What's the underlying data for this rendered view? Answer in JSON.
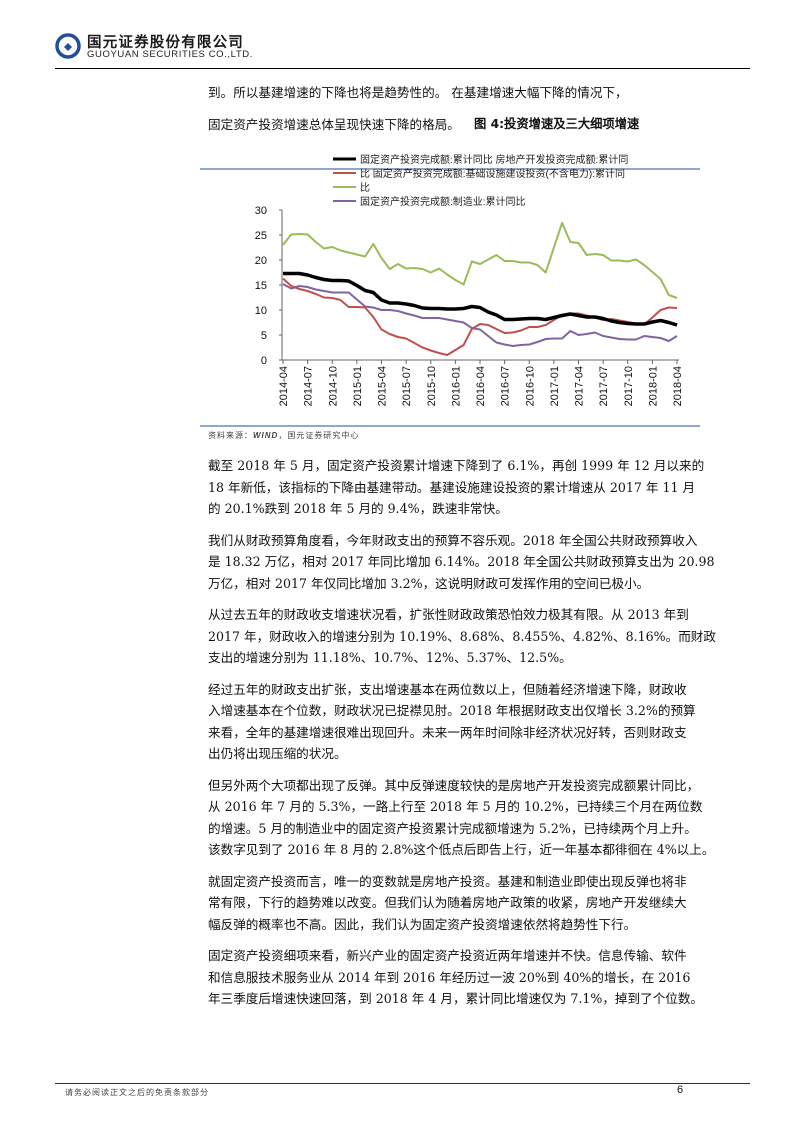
{
  "header": {
    "company_cn": "国元证券股份有限公司",
    "company_en": "GUOYUAN SECURITIES CO.,LTD.",
    "logo_color": "#1f4e9c"
  },
  "intro": {
    "lines": [
      "到。所以基建增速的下降也将是趋势性的。 在基建增速大幅下降的情况下，",
      "固定资产投资增速总体呈现快速下降的格局。"
    ]
  },
  "figure": {
    "title": "图 4:投资增速及三大细项增速",
    "source_label": "资料来源：",
    "source_wind": "WIND",
    "source_rest": "，国元证券研究中心",
    "rule_color": "#1f4e9c"
  },
  "chart_data": {
    "type": "line",
    "ylim": [
      0,
      30
    ],
    "yticks": [
      "0",
      "5",
      "10",
      "15",
      "20",
      "25",
      "30"
    ],
    "xticks": [
      "2014-04",
      "2014-07",
      "2014-10",
      "2015-01",
      "2015-04",
      "2015-07",
      "2015-10",
      "2016-01",
      "2016-04",
      "2016-07",
      "2016-10",
      "2017-01",
      "2017-04",
      "2017-07",
      "2017-10",
      "2018-01",
      "2018-04"
    ],
    "x_start": "2014-04",
    "x_end": "2018-04",
    "legend_placement": "top",
    "legend_rows": [
      "固定资产投资完成额:累计同比  房地产开发投资完成额:累计同",
      "比  固定资产投资完成额:基础设施建设投资(不含电力):累计同",
      "比",
      "固定资产投资完成额:制造业:累计同比"
    ],
    "series": [
      {
        "name": "固定资产投资完成额:累计同比",
        "color": "#000000",
        "values": [
          17.3,
          17.3,
          17.3,
          17.0,
          16.5,
          16.1,
          15.9,
          15.9,
          15.8,
          14.9,
          13.9,
          13.5,
          12.0,
          11.4,
          11.4,
          11.2,
          10.9,
          10.4,
          10.3,
          10.3,
          10.2,
          10.2,
          10.3,
          10.7,
          10.5,
          9.6,
          9.0,
          8.1,
          8.1,
          8.2,
          8.3,
          8.3,
          8.1,
          8.5,
          8.9,
          9.2,
          8.9,
          8.6,
          8.6,
          8.3,
          7.8,
          7.5,
          7.3,
          7.2,
          7.2,
          7.6,
          7.9,
          7.5,
          7.0
        ]
      },
      {
        "name": "房地产开发投资完成额:累计同比",
        "color": "#c0504d",
        "values": [
          16.3,
          14.8,
          14.2,
          13.8,
          13.2,
          12.5,
          12.4,
          12.0,
          10.6,
          10.6,
          10.5,
          8.6,
          6.1,
          5.2,
          4.6,
          4.3,
          3.4,
          2.5,
          1.9,
          1.4,
          1.0,
          2.0,
          3.0,
          6.2,
          7.2,
          7.0,
          6.2,
          5.4,
          5.5,
          5.9,
          6.6,
          6.6,
          7.0,
          8.0,
          9.0,
          9.3,
          9.3,
          8.9,
          8.5,
          8.0,
          8.2,
          7.9,
          7.6,
          7.3,
          7.1,
          8.5,
          10.0,
          10.5,
          10.4
        ]
      },
      {
        "name": "固定资产投资完成额:基础设施建设投资(不含电力):累计同比",
        "color": "#9bbb59",
        "values": [
          23.0,
          25.1,
          25.2,
          25.1,
          23.6,
          22.3,
          22.6,
          21.9,
          21.5,
          21.1,
          20.7,
          23.2,
          20.4,
          18.2,
          19.2,
          18.3,
          18.4,
          18.2,
          17.5,
          18.3,
          17.1,
          16.0,
          15.1,
          19.7,
          19.2,
          20.1,
          21.0,
          19.8,
          19.8,
          19.5,
          19.5,
          19.0,
          17.5,
          22.5,
          27.4,
          23.6,
          23.4,
          21.0,
          21.2,
          21.0,
          19.9,
          19.9,
          19.7,
          20.1,
          19.0,
          17.6,
          16.2,
          13.0,
          12.4
        ]
      },
      {
        "name": "固定资产投资完成额:制造业:累计同比",
        "color": "#8064a2",
        "values": [
          15.2,
          14.3,
          14.8,
          14.6,
          14.1,
          13.8,
          13.5,
          13.5,
          13.5,
          12.1,
          10.7,
          10.5,
          10.0,
          10.0,
          9.8,
          9.3,
          8.9,
          8.4,
          8.4,
          8.4,
          8.1,
          7.8,
          7.5,
          6.4,
          6.1,
          4.8,
          3.5,
          3.1,
          2.8,
          3.0,
          3.1,
          3.6,
          4.2,
          4.3,
          4.3,
          5.8,
          5.0,
          5.2,
          5.5,
          4.8,
          4.5,
          4.2,
          4.1,
          4.1,
          4.8,
          4.6,
          4.4,
          3.8,
          4.8
        ]
      }
    ]
  },
  "paragraphs": [
    [
      "截至 2018 年 5 月，固定资产投资累计增速下降到了 6.1%，再创 1999 年 12 月以来的",
      "18 年新低，该指标的下降由基建带动。基建设施建设投资的累计增速从 2017 年 11 月",
      "的 20.1%跌到 2018 年 5 月的 9.4%，跌速非常快。"
    ],
    [
      "我们从财政预算角度看，今年财政支出的预算不容乐观。2018 年全国公共财政预算收入",
      "是 18.32 万亿，相对 2017 年同比增加 6.14%。2018 年全国公共财政预算支出为 20.98",
      "万亿，相对 2017 年仅同比增加 3.2%，这说明财政可发挥作用的空间已极小。"
    ],
    [
      "从过去五年的财政收支增速状况看，扩张性财政政策恐怕效力极其有限。从 2013 年到",
      "2017 年，财政收入的增速分别为 10.19%、8.68%、8.455%、4.82%、8.16%。而财政",
      "支出的增速分别为 11.18%、10.7%、12%、5.37%、12.5%。"
    ],
    [
      "经过五年的财政支出扩张，支出增速基本在两位数以上，但随着经济增速下降，财政收",
      "入增速基本在个位数，财政状况已捉襟见肘。2018 年根据财政支出仅增长 3.2%的预算",
      "来看，全年的基建增速很难出现回升。未来一两年时间除非经济状况好转，否则财政支",
      "出仍将出现压缩的状况。"
    ],
    [
      "但另外两个大项都出现了反弹。其中反弹速度较快的是房地产开发投资完成额累计同比，",
      "从 2016 年 7 月的 5.3%，一路上行至 2018 年 5 月的 10.2%，已持续三个月在两位数",
      "的增速。5 月的制造业中的固定资产投资累计完成额增速为 5.2%，已持续两个月上升。",
      "该数字见到了 2016 年 8 月的 2.8%这个低点后即告上行，近一年基本都徘徊在 4%以上。"
    ],
    [
      "就固定资产投资而言，唯一的变数就是房地产投资。基建和制造业即使出现反弹也将非",
      "常有限，下行的趋势难以改变。但我们认为随着房地产政策的收紧，房地产开发继续大",
      "幅反弹的概率也不高。因此，我们认为固定资产投资增速依然将趋势性下行。"
    ],
    [
      "固定资产投资细项来看，新兴产业的固定资产投资近两年增速并不快。信息传输、软件",
      "和信息服技术服务业从 2014 年到 2016 年经历过一波 20%到 40%的增长，在 2016",
      "年三季度后增速快速回落，到 2018 年 4 月，累计同比增速仅为 7.1%，掉到了个位数。"
    ]
  ],
  "footer": {
    "disclaimer": "请务必阅读正文之后的免责条款部分",
    "page_number": "6",
    "rule_color": "#1f2f5c"
  }
}
